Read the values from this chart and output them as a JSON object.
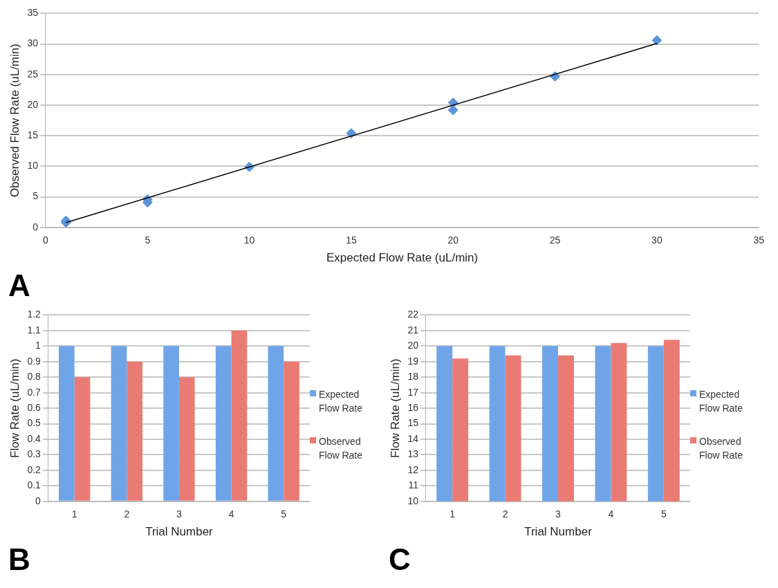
{
  "chart_data": [
    {
      "type": "scatter",
      "xlabel": "Expected Flow Rate (uL/min)",
      "ylabel": "Observed Flow Rate (uL/min)",
      "annotations": [
        "A"
      ],
      "xlim": [
        0,
        35
      ],
      "ylim": [
        0,
        35
      ],
      "xticks": [
        0,
        5,
        10,
        15,
        20,
        25,
        30,
        35
      ],
      "yticks": [
        0,
        5,
        10,
        15,
        20,
        25,
        30,
        35
      ],
      "grid": "y",
      "series": [
        {
          "type": "scatter",
          "marker": "diamond",
          "color": "#5b93d8",
          "x": [
            1,
            1,
            5,
            5,
            10,
            15,
            20,
            20,
            25,
            30
          ],
          "values": [
            0.8,
            1.1,
            4.6,
            4.1,
            9.9,
            15.4,
            20.4,
            19.2,
            24.7,
            30.6
          ]
        },
        {
          "type": "line",
          "marker": "none",
          "color": "#000000",
          "x": [
            1,
            30
          ],
          "values": [
            0.8,
            30.1
          ]
        }
      ]
    },
    {
      "type": "bar",
      "xlabel": "Trial Number",
      "ylabel": "Flow Rate (uL/min)",
      "annotations": [
        "B"
      ],
      "categories": [
        "1",
        "2",
        "3",
        "4",
        "5"
      ],
      "ylim": [
        0,
        1.2
      ],
      "yticks": [
        0,
        0.1,
        0.2,
        0.3,
        0.4,
        0.5,
        0.6,
        0.7,
        0.8,
        0.9,
        1,
        1.1,
        1.2
      ],
      "grid": "y",
      "legend": "right",
      "series": [
        {
          "name": "Expected Flow Rate",
          "color": "#6fa5e8",
          "values": [
            1,
            1,
            1,
            1,
            1
          ]
        },
        {
          "name": "Observed Flow Rate",
          "color": "#ea7b74",
          "values": [
            0.8,
            0.9,
            0.8,
            1.1,
            0.9
          ]
        }
      ]
    },
    {
      "type": "bar",
      "xlabel": "Trial Number",
      "ylabel": "Flow Rate (uL/min)",
      "annotations": [
        "C"
      ],
      "categories": [
        "1",
        "2",
        "3",
        "4",
        "5"
      ],
      "ylim": [
        10,
        22
      ],
      "yticks": [
        10,
        11,
        12,
        13,
        14,
        15,
        16,
        17,
        18,
        19,
        20,
        21,
        22
      ],
      "grid": "y",
      "legend": "right",
      "series": [
        {
          "name": "Expected Flow Rate",
          "color": "#6fa5e8",
          "values": [
            20,
            20,
            20,
            20,
            20
          ]
        },
        {
          "name": "Observed Flow Rate",
          "color": "#ea7b74",
          "values": [
            19.2,
            19.4,
            19.4,
            20.2,
            20.4
          ]
        }
      ]
    }
  ]
}
